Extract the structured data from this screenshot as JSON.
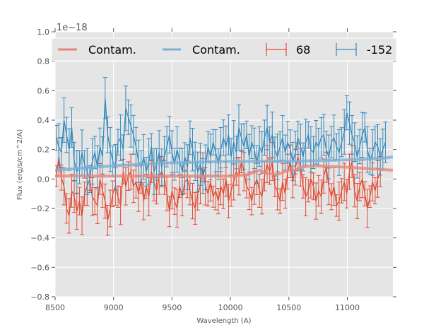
{
  "chart_data": {
    "type": "line",
    "title": "",
    "xlabel": "Wavelength (A)",
    "ylabel": "Flux (erg/s/cm^2/A)",
    "y_offset_text": "1e−18",
    "xlim": [
      8500,
      11390
    ],
    "ylim": [
      -0.8,
      1.0
    ],
    "x_ticks": [
      8500,
      9000,
      9500,
      10000,
      10500,
      11000
    ],
    "x_tick_labels": [
      "8500",
      "9000",
      "9500",
      "10000",
      "10500",
      "11000"
    ],
    "y_ticks": [
      -0.8,
      -0.6,
      -0.4,
      -0.2,
      0.0,
      0.2,
      0.4,
      0.6,
      0.8,
      1.0
    ],
    "y_tick_labels": [
      "−0.8",
      "−0.6",
      "−0.4",
      "−0.2",
      "0.0",
      "0.2",
      "0.4",
      "0.6",
      "0.8",
      "1.0"
    ],
    "grid": true,
    "legend_placement": "top",
    "legend": [
      {
        "label": "Contam.",
        "kind": "line",
        "color": "#E5877A"
      },
      {
        "label": "Contam.",
        "kind": "line",
        "color": "#7DAFD3"
      },
      {
        "label": "68",
        "kind": "errorbar",
        "color": "#E24A33"
      },
      {
        "label": "-152",
        "kind": "errorbar",
        "color": "#348ABD"
      }
    ],
    "series": [
      {
        "name": "Contam.",
        "role": "contamination",
        "color": "#E5877A",
        "x": [
          8500,
          9000,
          9500,
          10000,
          10150,
          10250,
          10300,
          10400,
          10500,
          10550,
          10600,
          10700,
          11000,
          11390
        ],
        "y": [
          0.02,
          0.02,
          0.02,
          0.02,
          0.03,
          0.06,
          0.04,
          0.03,
          0.06,
          0.06,
          0.08,
          0.09,
          0.08,
          0.06
        ]
      },
      {
        "name": "Contam.",
        "role": "contamination",
        "color": "#7DAFD3",
        "x": [
          8500,
          9000,
          9500,
          10000,
          10500,
          11000,
          11300,
          11390
        ],
        "y": [
          0.06,
          0.09,
          0.11,
          0.12,
          0.12,
          0.13,
          0.14,
          0.15
        ]
      },
      {
        "name": "68",
        "role": "spectrum",
        "color": "#E24A33",
        "x_start": 8510,
        "x_step": 22,
        "y": [
          0.02,
          0.15,
          0.01,
          -0.05,
          -0.2,
          -0.25,
          -0.08,
          -0.12,
          -0.22,
          -0.15,
          -0.25,
          -0.1,
          -0.05,
          0.0,
          -0.12,
          -0.15,
          -0.18,
          0.0,
          -0.08,
          -0.15,
          -0.28,
          -0.2,
          -0.1,
          -0.05,
          -0.12,
          -0.18,
          0.05,
          -0.05,
          0.02,
          0.05,
          -0.05,
          -0.02,
          -0.1,
          0.0,
          -0.15,
          -0.05,
          -0.12,
          0.05,
          -0.02,
          -0.08,
          0.02,
          0.05,
          0.01,
          -0.1,
          -0.22,
          -0.08,
          -0.15,
          -0.2,
          -0.05,
          -0.12,
          -0.02,
          0.0,
          -0.08,
          -0.15,
          -0.2,
          -0.1,
          -0.05,
          0.08,
          -0.05,
          -0.1,
          -0.02,
          -0.12,
          -0.08,
          -0.15,
          -0.05,
          -0.1,
          0.0,
          -0.15,
          -0.08,
          -0.02,
          0.05,
          0.02,
          0.12,
          0.05,
          -0.05,
          -0.08,
          -0.15,
          -0.05,
          0.0,
          -0.08,
          -0.12,
          0.02,
          0.1,
          0.05,
          0.12,
          -0.05,
          -0.08,
          -0.15,
          -0.02,
          -0.1,
          0.05,
          0.12,
          -0.02,
          0.08,
          0.15,
          0.08,
          -0.05,
          -0.12,
          -0.08,
          0.0,
          -0.05,
          -0.15,
          -0.08,
          -0.12,
          0.02,
          0.08,
          -0.05,
          -0.12,
          -0.05,
          -0.18,
          -0.15,
          -0.08,
          -0.02,
          -0.1,
          0.05,
          0.12,
          -0.08,
          -0.15,
          -0.05,
          0.0,
          -0.1,
          -0.2,
          -0.12,
          -0.02,
          -0.08,
          0.0,
          0.05
        ],
        "err": 0.1
      },
      {
        "name": "-152",
        "role": "spectrum",
        "color": "#348ABD",
        "x_start": 8510,
        "x_step": 22,
        "y": [
          0.28,
          0.22,
          0.18,
          0.4,
          0.3,
          0.2,
          0.35,
          0.12,
          0.05,
          0.08,
          0.18,
          0.1,
          0.05,
          0.0,
          0.12,
          0.18,
          0.08,
          0.22,
          0.15,
          0.55,
          0.3,
          0.2,
          0.12,
          0.08,
          0.25,
          0.28,
          0.2,
          0.48,
          0.42,
          0.36,
          0.3,
          0.22,
          0.12,
          0.08,
          0.15,
          0.05,
          0.12,
          0.22,
          0.05,
          0.1,
          0.18,
          0.08,
          0.15,
          0.22,
          0.3,
          0.18,
          0.1,
          0.2,
          0.12,
          0.05,
          0.15,
          0.08,
          0.28,
          0.2,
          0.12,
          0.05,
          0.1,
          0.02,
          0.08,
          0.22,
          0.15,
          0.25,
          0.18,
          0.1,
          0.2,
          0.28,
          0.22,
          0.3,
          0.15,
          0.25,
          0.18,
          0.35,
          0.28,
          0.22,
          0.3,
          0.15,
          0.25,
          0.2,
          0.1,
          0.22,
          0.18,
          0.28,
          0.35,
          0.25,
          0.3,
          0.2,
          0.15,
          0.22,
          0.28,
          0.18,
          0.25,
          0.2,
          0.12,
          0.18,
          0.28,
          0.22,
          0.15,
          0.25,
          0.3,
          0.2,
          0.18,
          0.25,
          0.22,
          0.28,
          0.3,
          0.2,
          0.15,
          0.25,
          0.28,
          0.22,
          0.18,
          0.25,
          0.32,
          0.45,
          0.38,
          0.3,
          0.25,
          0.15,
          0.22,
          0.3,
          0.35,
          0.2,
          0.12,
          0.18,
          0.25,
          0.22,
          0.15,
          0.2,
          0.25
        ],
        "err": 0.12
      }
    ]
  }
}
